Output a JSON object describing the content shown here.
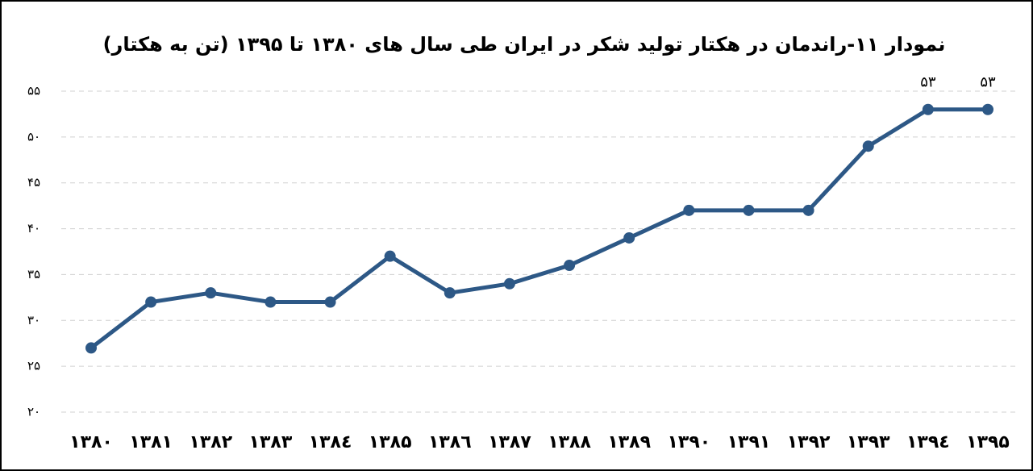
{
  "chart_data": {
    "type": "line",
    "title": "نمودار ۱۱-راندمان در هکتار  تولید شکر در ایران طی سال های ۱۳۸۰ تا ۱۳۹۵ (تن به هکتار)",
    "categories": [
      "۱۳۸۰",
      "۱۳۸۱",
      "۱۳۸۲",
      "۱۳۸۳",
      "۱۳۸٤",
      "۱۳۸۵",
      "۱۳۸٦",
      "۱۳۸۷",
      "۱۳۸۸",
      "۱۳۸۹",
      "۱۳۹۰",
      "۱۳۹۱",
      "۱۳۹۲",
      "۱۳۹۳",
      "۱۳۹٤",
      "۱۳۹۵"
    ],
    "series": [
      {
        "color": "#2d5886",
        "values": [
          27,
          32,
          33,
          32,
          32,
          37,
          33,
          34,
          36,
          39,
          42,
          42,
          42,
          49,
          53,
          53
        ],
        "value_labels": [
          null,
          null,
          null,
          null,
          null,
          null,
          null,
          null,
          null,
          null,
          null,
          null,
          null,
          null,
          "۵۳",
          "۵۳"
        ]
      }
    ],
    "ylim": [
      20,
      55
    ],
    "yticks": [
      {
        "value": 20,
        "label": "۲۰"
      },
      {
        "value": 25,
        "label": "۲۵"
      },
      {
        "value": 30,
        "label": "۳۰"
      },
      {
        "value": 35,
        "label": "۳۵"
      },
      {
        "value": 40,
        "label": "۴۰"
      },
      {
        "value": 45,
        "label": "۴۵"
      },
      {
        "value": 50,
        "label": "۵۰"
      },
      {
        "value": 55,
        "label": "۵۵"
      }
    ],
    "grid": true
  }
}
